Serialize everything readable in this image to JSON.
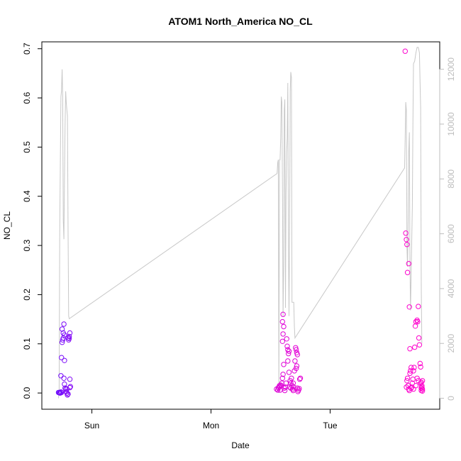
{
  "chart_data": {
    "type": "scatter",
    "title": "ATOM1 North_America NO_CL",
    "xlabel": "Date",
    "ylabel": "NO_CL",
    "x_ticks": [
      {
        "value": 1.0,
        "label": "Sun"
      },
      {
        "value": 2.0,
        "label": "Mon"
      },
      {
        "value": 3.0,
        "label": "Tue"
      }
    ],
    "xlim": [
      0.58,
      3.92
    ],
    "ylim": [
      -0.033,
      0.714
    ],
    "y_ticks": [
      0.0,
      0.1,
      0.2,
      0.3,
      0.4,
      0.5,
      0.6,
      0.7
    ],
    "y_tick_labels": [
      "0.0",
      "0.1",
      "0.2",
      "0.3",
      "0.4",
      "0.5",
      "0.6",
      "0.7"
    ],
    "right_axis": {
      "ylim": [
        -400,
        13000
      ],
      "ticks": [
        0,
        2000,
        4000,
        6000,
        8000,
        10000,
        12000
      ],
      "tick_labels": [
        "0",
        "2000",
        "4000",
        "6000",
        "8000",
        "10000",
        "12000"
      ],
      "color": "#bdbdbd"
    },
    "color_scale": {
      "start": "#6a0dff",
      "end": "#ff00cc"
    },
    "grid": false,
    "legend": "none",
    "series": [
      {
        "kind": "points",
        "axis": "left",
        "points": [
          [
            0.72,
            0.001
          ],
          [
            0.73,
            0.0
          ],
          [
            0.74,
            0.002
          ],
          [
            0.725,
            0.001
          ],
          [
            0.735,
            0.0
          ],
          [
            0.745,
            0.001
          ],
          [
            0.74,
            0.035
          ],
          [
            0.745,
            0.072
          ],
          [
            0.75,
            0.103
          ],
          [
            0.755,
            0.108
          ],
          [
            0.76,
            0.112
          ],
          [
            0.75,
            0.13
          ],
          [
            0.76,
            0.122
          ],
          [
            0.77,
            0.118
          ],
          [
            0.765,
            0.14
          ],
          [
            0.77,
            0.066
          ],
          [
            0.765,
            0.03
          ],
          [
            0.77,
            0.018
          ],
          [
            0.775,
            0.01
          ],
          [
            0.78,
            0.008
          ],
          [
            0.785,
            0.003
          ],
          [
            0.79,
            0.0
          ],
          [
            0.795,
            -0.004
          ],
          [
            0.8,
            -0.002
          ],
          [
            0.79,
            0.008
          ],
          [
            0.8,
            0.112
          ],
          [
            0.805,
            0.108
          ],
          [
            0.81,
            0.115
          ],
          [
            0.815,
            0.122
          ],
          [
            0.81,
            0.111
          ],
          [
            0.815,
            0.011
          ],
          [
            0.82,
            0.013
          ],
          [
            0.815,
            0.028
          ],
          [
            2.55,
            0.008
          ],
          [
            2.56,
            0.006
          ],
          [
            2.565,
            0.01
          ],
          [
            2.57,
            0.012
          ],
          [
            2.575,
            0.015
          ],
          [
            2.58,
            0.006
          ],
          [
            2.585,
            0.016
          ],
          [
            2.59,
            0.014
          ],
          [
            2.595,
            0.02
          ],
          [
            2.6,
            0.03
          ],
          [
            2.605,
            0.038
          ],
          [
            2.61,
            0.058
          ],
          [
            2.6,
            0.105
          ],
          [
            2.605,
            0.12
          ],
          [
            2.61,
            0.135
          ],
          [
            2.6,
            0.145
          ],
          [
            2.605,
            0.16
          ],
          [
            2.615,
            0.01
          ],
          [
            2.62,
            0.005
          ],
          [
            2.625,
            0.012
          ],
          [
            2.63,
            0.02
          ],
          [
            2.635,
            0.11
          ],
          [
            2.64,
            0.095
          ],
          [
            2.645,
            0.088
          ],
          [
            2.65,
            0.08
          ],
          [
            2.655,
            0.085
          ],
          [
            2.66,
            0.012
          ],
          [
            2.665,
            0.025
          ],
          [
            2.67,
            0.02
          ],
          [
            2.675,
            0.03
          ],
          [
            2.68,
            0.015
          ],
          [
            2.685,
            0.008
          ],
          [
            2.69,
            0.005
          ],
          [
            2.695,
            0.012
          ],
          [
            2.7,
            0.045
          ],
          [
            2.705,
            0.065
          ],
          [
            2.71,
            0.092
          ],
          [
            2.715,
            0.088
          ],
          [
            2.72,
            0.082
          ],
          [
            2.725,
            0.078
          ],
          [
            2.715,
            0.05
          ],
          [
            2.72,
            0.055
          ],
          [
            2.725,
            0.01
          ],
          [
            2.73,
            0.003
          ],
          [
            2.735,
            0.006
          ],
          [
            2.74,
            0.009
          ],
          [
            2.745,
            0.028
          ],
          [
            2.75,
            0.03
          ],
          [
            2.645,
            0.065
          ],
          [
            2.655,
            0.042
          ],
          [
            2.67,
            0.01
          ],
          [
            2.69,
            0.02
          ],
          [
            3.63,
            0.695
          ],
          [
            3.635,
            0.325
          ],
          [
            3.64,
            0.312
          ],
          [
            3.645,
            0.302
          ],
          [
            3.65,
            0.245
          ],
          [
            3.66,
            0.263
          ],
          [
            3.665,
            0.175
          ],
          [
            3.67,
            0.09
          ],
          [
            3.64,
            0.012
          ],
          [
            3.645,
            0.025
          ],
          [
            3.65,
            0.03
          ],
          [
            3.655,
            0.015
          ],
          [
            3.66,
            0.008
          ],
          [
            3.665,
            0.005
          ],
          [
            3.67,
            0.04
          ],
          [
            3.675,
            0.045
          ],
          [
            3.68,
            0.052
          ],
          [
            3.685,
            0.012
          ],
          [
            3.69,
            0.02
          ],
          [
            3.695,
            0.028
          ],
          [
            3.7,
            0.045
          ],
          [
            3.705,
            0.052
          ],
          [
            3.71,
            0.093
          ],
          [
            3.715,
            0.136
          ],
          [
            3.72,
            0.145
          ],
          [
            3.73,
            0.148
          ],
          [
            3.735,
            0.145
          ],
          [
            3.74,
            0.176
          ],
          [
            3.745,
            0.112
          ],
          [
            3.75,
            0.098
          ],
          [
            3.755,
            0.06
          ],
          [
            3.76,
            0.053
          ],
          [
            3.765,
            0.022
          ],
          [
            3.77,
            0.015
          ],
          [
            3.775,
            0.008
          ],
          [
            3.765,
            0.005
          ],
          [
            3.77,
            0.012
          ],
          [
            3.775,
            0.025
          ],
          [
            3.68,
            0.01
          ],
          [
            3.7,
            0.008
          ],
          [
            3.72,
            0.015
          ],
          [
            3.73,
            0.03
          ],
          [
            3.74,
            0.025
          ],
          [
            3.76,
            0.02
          ],
          [
            3.765,
            0.01
          ],
          [
            3.775,
            0.004
          ]
        ]
      },
      {
        "kind": "line",
        "axis": "right",
        "color": "#c8c8c8",
        "points": [
          [
            0.72,
            0
          ],
          [
            0.725,
            300
          ],
          [
            0.73,
            6000
          ],
          [
            0.74,
            11000
          ],
          [
            0.745,
            11200
          ],
          [
            0.75,
            12000
          ],
          [
            0.755,
            11000
          ],
          [
            0.76,
            6500
          ],
          [
            0.765,
            5800
          ],
          [
            0.77,
            8000
          ],
          [
            0.775,
            10000
          ],
          [
            0.78,
            11200
          ],
          [
            0.785,
            10800
          ],
          [
            0.79,
            10500
          ],
          [
            0.795,
            10300
          ],
          [
            0.8,
            6000
          ],
          [
            0.805,
            3000
          ],
          [
            0.81,
            2900
          ],
          [
            2.555,
            8200
          ],
          [
            2.56,
            8600
          ],
          [
            2.565,
            8700
          ],
          [
            2.57,
            200
          ],
          [
            2.575,
            8700
          ],
          [
            2.58,
            8700
          ],
          [
            2.585,
            9500
          ],
          [
            2.59,
            11000
          ],
          [
            2.595,
            10800
          ],
          [
            2.6,
            7500
          ],
          [
            2.605,
            3000
          ],
          [
            2.61,
            5000
          ],
          [
            2.615,
            10500
          ],
          [
            2.62,
            10900
          ],
          [
            2.625,
            3300
          ],
          [
            2.63,
            7500
          ],
          [
            2.635,
            9000
          ],
          [
            2.64,
            9500
          ],
          [
            2.645,
            11500
          ],
          [
            2.65,
            5500
          ],
          [
            2.655,
            3000
          ],
          [
            2.66,
            6500
          ],
          [
            2.665,
            11200
          ],
          [
            2.67,
            11900
          ],
          [
            2.675,
            11700
          ],
          [
            2.68,
            3500
          ],
          [
            2.69,
            3500
          ],
          [
            2.695,
            3500
          ],
          [
            2.7,
            2600
          ],
          [
            2.705,
            2200
          ],
          [
            3.625,
            8400
          ],
          [
            3.63,
            9500
          ],
          [
            3.635,
            10800
          ],
          [
            3.64,
            10500
          ],
          [
            3.645,
            5500
          ],
          [
            3.65,
            4800
          ],
          [
            3.655,
            6500
          ],
          [
            3.66,
            9000
          ],
          [
            3.665,
            9700
          ],
          [
            3.67,
            5000
          ],
          [
            3.675,
            3200
          ],
          [
            3.68,
            4500
          ],
          [
            3.69,
            7000
          ],
          [
            3.695,
            10000
          ],
          [
            3.7,
            12200
          ],
          [
            3.71,
            12300
          ],
          [
            3.72,
            12600
          ],
          [
            3.73,
            12800
          ],
          [
            3.74,
            12800
          ],
          [
            3.75,
            12600
          ],
          [
            3.755,
            11500
          ],
          [
            3.76,
            10600
          ],
          [
            3.765,
            4000
          ],
          [
            3.77,
            2000
          ]
        ]
      }
    ]
  }
}
